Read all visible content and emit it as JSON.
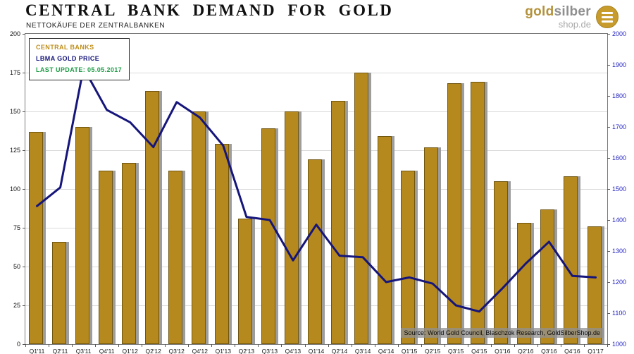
{
  "header": {
    "title": "CENTRAL BANK DEMAND FOR GOLD",
    "subtitle": "NETTOKÄUFE DER ZENTRALBANKEN"
  },
  "logo": {
    "brand_gold": "gold",
    "brand_silver": "silber",
    "brand_suffix": "shop.de"
  },
  "legend": {
    "bars_label": "CENTRAL BANKS",
    "line_label": "LBMA GOLD PRICE",
    "last_update": "LAST UPDATE: 05.05.2017"
  },
  "source_note": "Source: World Gold Council, Blaschzok Research, GoldSilberShop.de",
  "chart_data": {
    "type": "bar+line combo",
    "categories": [
      "Q1'11",
      "Q2'11",
      "Q3'11",
      "Q4'11",
      "Q1'12",
      "Q2'12",
      "Q3'12",
      "Q4'12",
      "Q1'13",
      "Q2'13",
      "Q3'13",
      "Q4'13",
      "Q1'14",
      "Q2'14",
      "Q3'14",
      "Q4'14",
      "Q1'15",
      "Q2'15",
      "Q3'15",
      "Q4'15",
      "Q1'16",
      "Q2'16",
      "Q3'16",
      "Q4'16",
      "Q1'17"
    ],
    "series": [
      {
        "name": "CENTRAL BANKS",
        "type": "bar",
        "axis": "left",
        "unit": "tonnes",
        "values": [
          137,
          66,
          140,
          112,
          117,
          163,
          112,
          150,
          129,
          81,
          139,
          150,
          119,
          157,
          175,
          134,
          112,
          127,
          168,
          169,
          105,
          78,
          87,
          108,
          76
        ]
      },
      {
        "name": "LBMA GOLD PRICE",
        "type": "line",
        "axis": "right",
        "unit": "USD/oz",
        "values": [
          1445,
          1505,
          1890,
          1755,
          1715,
          1635,
          1780,
          1730,
          1640,
          1410,
          1400,
          1270,
          1385,
          1285,
          1280,
          1200,
          1215,
          1195,
          1125,
          1105,
          1180,
          1260,
          1330,
          1220,
          1215
        ]
      }
    ],
    "left_axis": {
      "min": 0,
      "max": 200,
      "step": 25,
      "ticks": [
        "0",
        "25",
        "50",
        "75",
        "100",
        "125",
        "150",
        "175",
        "200"
      ]
    },
    "right_axis": {
      "min": 1000,
      "max": 2000,
      "step": 100,
      "ticks": [
        "1000",
        "1100",
        "1200",
        "1300",
        "1400",
        "1500",
        "1600",
        "1700",
        "1800",
        "1900",
        "2000"
      ]
    },
    "grid": true,
    "legend_position": "top-left",
    "colors": {
      "bar": "#b5891e",
      "bar_shadow": "#9d9d9d",
      "line": "#15157b",
      "legend_update_green": "#1e9c46",
      "right_axis_blue": "#2222c2"
    }
  }
}
